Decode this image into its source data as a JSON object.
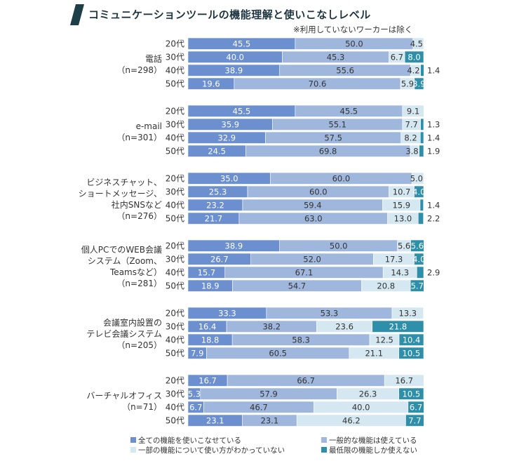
{
  "title": "コミュニケーションツールの機能理解と使いこなしレベル",
  "note": "※利用していないワーカーは除く",
  "colors": {
    "title_bar": "#1e3e48",
    "title_text": "#1e3440",
    "s1": "#6b8fcf",
    "s2": "#9fb7dd",
    "s3": "#d5e7f1",
    "s4": "#2e8faa"
  },
  "chart_data": {
    "type": "bar",
    "orientation": "horizontal",
    "stacked": true,
    "percent": true,
    "xlim": [
      0,
      100
    ],
    "series": [
      {
        "name": "全ての機能を使いこなせている",
        "color": "#6b8fcf"
      },
      {
        "name": "一般的な機能は使えている",
        "color": "#9fb7dd"
      },
      {
        "name": "一部の機能について使い方がわかっていない",
        "color": "#d5e7f1"
      },
      {
        "name": "最低限の機能しか使えない",
        "color": "#2e8faa"
      }
    ],
    "groups": [
      {
        "label": [
          "電話",
          "（n=298）"
        ],
        "rows": [
          {
            "age": "20代",
            "values": [
              45.5,
              50.0,
              4.5,
              0
            ],
            "labels": [
              "45.5",
              "50.0",
              "4.5",
              ""
            ]
          },
          {
            "age": "30代",
            "values": [
              40.0,
              45.3,
              6.7,
              8.0
            ],
            "labels": [
              "40.0",
              "45.3",
              "6.7",
              "8.0"
            ]
          },
          {
            "age": "40代",
            "values": [
              38.9,
              55.6,
              4.2,
              1.4
            ],
            "labels": [
              "38.9",
              "55.6",
              "4.2",
              "1.4"
            ]
          },
          {
            "age": "50代",
            "values": [
              19.6,
              70.6,
              5.9,
              3.9
            ],
            "labels": [
              "19.6",
              "70.6",
              "5.9",
              "3.9"
            ]
          }
        ]
      },
      {
        "label": [
          "e-mail",
          "（n=301）"
        ],
        "rows": [
          {
            "age": "20代",
            "values": [
              45.5,
              45.5,
              9.1,
              0
            ],
            "labels": [
              "45.5",
              "45.5",
              "9.1",
              ""
            ]
          },
          {
            "age": "30代",
            "values": [
              35.9,
              55.1,
              7.7,
              1.3
            ],
            "labels": [
              "35.9",
              "55.1",
              "7.7",
              "1.3"
            ]
          },
          {
            "age": "40代",
            "values": [
              32.9,
              57.5,
              8.2,
              1.4
            ],
            "labels": [
              "32.9",
              "57.5",
              "8.2",
              "1.4"
            ]
          },
          {
            "age": "50代",
            "values": [
              24.5,
              69.8,
              3.8,
              1.9
            ],
            "labels": [
              "24.5",
              "69.8",
              "3.8",
              "1.9"
            ]
          }
        ]
      },
      {
        "label": [
          "ビジネスチャット、",
          "ショートメッセージ、",
          "社内SNSなど",
          "（n=276）"
        ],
        "rows": [
          {
            "age": "20代",
            "values": [
              35.0,
              60.0,
              5.0,
              0
            ],
            "labels": [
              "35.0",
              "60.0",
              "5.0",
              ""
            ]
          },
          {
            "age": "30代",
            "values": [
              25.3,
              60.0,
              10.7,
              4.0
            ],
            "labels": [
              "25.3",
              "60.0",
              "10.7",
              "4.0"
            ]
          },
          {
            "age": "40代",
            "values": [
              23.2,
              59.4,
              15.9,
              1.4
            ],
            "labels": [
              "23.2",
              "59.4",
              "15.9",
              "1.4"
            ]
          },
          {
            "age": "50代",
            "values": [
              21.7,
              63.0,
              13.0,
              2.2
            ],
            "labels": [
              "21.7",
              "63.0",
              "13.0",
              "2.2"
            ]
          }
        ]
      },
      {
        "label": [
          "個人PCでのWEB会議",
          "システム（Zoom、",
          "Teamsなど）",
          "（n=281）"
        ],
        "rows": [
          {
            "age": "20代",
            "values": [
              38.9,
              50.0,
              5.6,
              5.6
            ],
            "labels": [
              "38.9",
              "50.0",
              "5.6",
              "5.6"
            ]
          },
          {
            "age": "30代",
            "values": [
              26.7,
              52.0,
              17.3,
              4.0
            ],
            "labels": [
              "26.7",
              "52.0",
              "17.3",
              "4.0"
            ]
          },
          {
            "age": "40代",
            "values": [
              15.7,
              67.1,
              14.3,
              2.9
            ],
            "labels": [
              "15.7",
              "67.1",
              "14.3",
              "2.9"
            ]
          },
          {
            "age": "50代",
            "values": [
              18.9,
              54.7,
              20.8,
              5.7
            ],
            "labels": [
              "18.9",
              "54.7",
              "20.8",
              "5.7"
            ]
          }
        ]
      },
      {
        "label": [
          "会議室内設置の",
          "テレビ会議システム",
          "（n=205）"
        ],
        "rows": [
          {
            "age": "20代",
            "values": [
              33.3,
              53.3,
              13.3,
              0
            ],
            "labels": [
              "33.3",
              "53.3",
              "13.3",
              ""
            ]
          },
          {
            "age": "30代",
            "values": [
              16.4,
              38.2,
              23.6,
              21.8
            ],
            "labels": [
              "16.4",
              "38.2",
              "23.6",
              "21.8"
            ]
          },
          {
            "age": "40代",
            "values": [
              18.8,
              58.3,
              12.5,
              10.4
            ],
            "labels": [
              "18.8",
              "58.3",
              "12.5",
              "10.4"
            ]
          },
          {
            "age": "50代",
            "values": [
              7.9,
              60.5,
              21.1,
              10.5
            ],
            "labels": [
              "7.9",
              "60.5",
              "21.1",
              "10.5"
            ]
          }
        ]
      },
      {
        "label": [
          "バーチャルオフィス",
          "（n=71）"
        ],
        "rows": [
          {
            "age": "20代",
            "values": [
              16.7,
              66.7,
              16.7,
              0
            ],
            "labels": [
              "16.7",
              "66.7",
              "16.7",
              ""
            ]
          },
          {
            "age": "30代",
            "values": [
              5.3,
              57.9,
              26.3,
              10.5
            ],
            "labels": [
              "5.3",
              "57.9",
              "26.3",
              "10.5"
            ]
          },
          {
            "age": "40代",
            "values": [
              6.7,
              46.7,
              40.0,
              6.7
            ],
            "labels": [
              "6.7",
              "46.7",
              "40.0",
              "6.7"
            ]
          },
          {
            "age": "50代",
            "values": [
              23.1,
              23.1,
              46.2,
              7.7
            ],
            "labels": [
              "23.1",
              "23.1",
              "46.2",
              "7.7"
            ]
          }
        ]
      }
    ]
  }
}
